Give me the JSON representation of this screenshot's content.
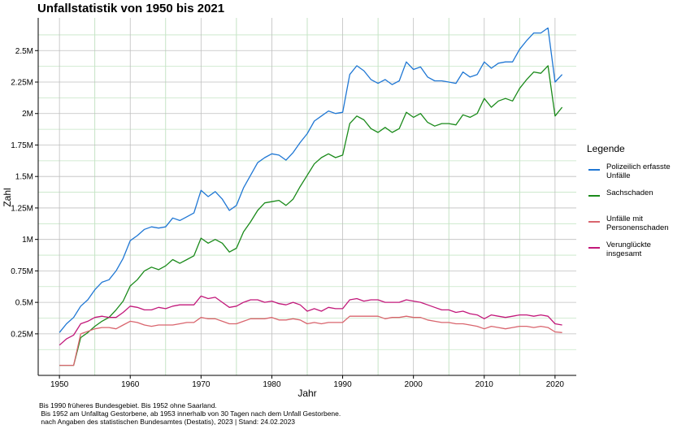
{
  "chart_data": {
    "type": "line",
    "title": "Unfallstatistik von 1950 bis 2021",
    "xlabel": "Jahr",
    "ylabel": "Zahl",
    "xlim": [
      1947,
      2023
    ],
    "ylim": [
      -80000,
      2760000
    ],
    "x_ticks": [
      1950,
      1960,
      1970,
      1980,
      1990,
      2000,
      2010,
      2020
    ],
    "x_tick_labels": [
      "1950",
      "1960",
      "1970",
      "1980",
      "1990",
      "2000",
      "2010",
      "2020"
    ],
    "y_ticks": [
      250000,
      500000,
      750000,
      1000000,
      1250000,
      1500000,
      1750000,
      2000000,
      2250000,
      2500000
    ],
    "y_tick_labels": [
      "0.25M",
      "0.5M",
      "0.75M",
      "1M",
      "1.25M",
      "1.5M",
      "1.75M",
      "2M",
      "2.25M",
      "2.5M"
    ],
    "grid": true,
    "legend_title": "Legende",
    "legend_position": "right",
    "x": [
      1950,
      1951,
      1952,
      1953,
      1954,
      1955,
      1956,
      1957,
      1958,
      1959,
      1960,
      1961,
      1962,
      1963,
      1964,
      1965,
      1966,
      1967,
      1968,
      1969,
      1970,
      1971,
      1972,
      1973,
      1974,
      1975,
      1976,
      1977,
      1978,
      1979,
      1980,
      1981,
      1982,
      1983,
      1984,
      1985,
      1986,
      1987,
      1988,
      1989,
      1990,
      1991,
      1992,
      1993,
      1994,
      1995,
      1996,
      1997,
      1998,
      1999,
      2000,
      2001,
      2002,
      2003,
      2004,
      2005,
      2006,
      2007,
      2008,
      2009,
      2010,
      2011,
      2012,
      2013,
      2014,
      2015,
      2016,
      2017,
      2018,
      2019,
      2020,
      2021
    ],
    "series": [
      {
        "name": "Polizeilich erfasste\n Unfälle",
        "color": "#1f77d4",
        "values": [
          260000,
          330000,
          380000,
          470000,
          520000,
          600000,
          660000,
          680000,
          750000,
          850000,
          990000,
          1030000,
          1080000,
          1100000,
          1090000,
          1100000,
          1170000,
          1150000,
          1180000,
          1210000,
          1390000,
          1340000,
          1380000,
          1320000,
          1230000,
          1270000,
          1410000,
          1510000,
          1610000,
          1650000,
          1680000,
          1670000,
          1630000,
          1690000,
          1770000,
          1840000,
          1940000,
          1980000,
          2020000,
          2000000,
          2010000,
          2310000,
          2380000,
          2340000,
          2270000,
          2240000,
          2270000,
          2230000,
          2260000,
          2410000,
          2350000,
          2370000,
          2290000,
          2260000,
          2260000,
          2250000,
          2240000,
          2330000,
          2290000,
          2310000,
          2410000,
          2360000,
          2400000,
          2410000,
          2410000,
          2510000,
          2580000,
          2640000,
          2640000,
          2680000,
          2250000,
          2310000
        ]
      },
      {
        "name": "Sachschaden",
        "color": "#1a8a1a",
        "values": [
          0,
          0,
          0,
          220000,
          260000,
          310000,
          350000,
          380000,
          440000,
          510000,
          630000,
          680000,
          750000,
          780000,
          760000,
          790000,
          840000,
          810000,
          840000,
          870000,
          1010000,
          970000,
          1000000,
          970000,
          900000,
          930000,
          1060000,
          1140000,
          1230000,
          1290000,
          1300000,
          1310000,
          1270000,
          1320000,
          1420000,
          1510000,
          1600000,
          1650000,
          1680000,
          1650000,
          1670000,
          1920000,
          1980000,
          1950000,
          1880000,
          1850000,
          1890000,
          1850000,
          1880000,
          2010000,
          1970000,
          2000000,
          1930000,
          1900000,
          1920000,
          1920000,
          1910000,
          1990000,
          1970000,
          2000000,
          2120000,
          2050000,
          2100000,
          2120000,
          2100000,
          2200000,
          2270000,
          2330000,
          2320000,
          2380000,
          1980000,
          2050000
        ]
      },
      {
        "name": "Unfälle mit\nPersonenschaden",
        "color": "#d9656e",
        "values": [
          0,
          0,
          0,
          250000,
          270000,
          290000,
          300000,
          300000,
          290000,
          320000,
          350000,
          340000,
          320000,
          310000,
          320000,
          320000,
          320000,
          330000,
          340000,
          340000,
          380000,
          370000,
          370000,
          350000,
          330000,
          330000,
          350000,
          370000,
          370000,
          370000,
          380000,
          360000,
          360000,
          370000,
          360000,
          330000,
          340000,
          330000,
          340000,
          340000,
          340000,
          390000,
          390000,
          390000,
          390000,
          390000,
          370000,
          380000,
          380000,
          390000,
          380000,
          380000,
          360000,
          350000,
          340000,
          340000,
          330000,
          330000,
          320000,
          310000,
          290000,
          310000,
          300000,
          290000,
          300000,
          310000,
          310000,
          300000,
          310000,
          300000,
          265000,
          260000
        ]
      },
      {
        "name": "Verunglückte\n insgesamt",
        "color": "#c2187a",
        "values": [
          160000,
          210000,
          240000,
          330000,
          350000,
          380000,
          390000,
          380000,
          380000,
          420000,
          470000,
          460000,
          440000,
          440000,
          460000,
          450000,
          470000,
          480000,
          480000,
          480000,
          550000,
          530000,
          540000,
          500000,
          460000,
          470000,
          500000,
          520000,
          520000,
          500000,
          510000,
          490000,
          480000,
          500000,
          480000,
          430000,
          450000,
          430000,
          460000,
          450000,
          450000,
          520000,
          530000,
          510000,
          520000,
          520000,
          500000,
          500000,
          500000,
          520000,
          510000,
          500000,
          480000,
          460000,
          440000,
          440000,
          420000,
          430000,
          410000,
          400000,
          370000,
          400000,
          390000,
          380000,
          390000,
          400000,
          400000,
          390000,
          400000,
          390000,
          330000,
          320000
        ]
      }
    ],
    "caption": "Bis 1990 früheres Bundesgebiet. Bis 1952 ohne Saarland.\n Bis 1952 am Unfalltag Gestorbene, ab 1953 innerhalb von 30 Tagen nach dem Unfall Gestorbene.\n nach Angaben des statistischen Bundesamtes (Destatis), 2023 | Stand: 24.02.2023"
  }
}
